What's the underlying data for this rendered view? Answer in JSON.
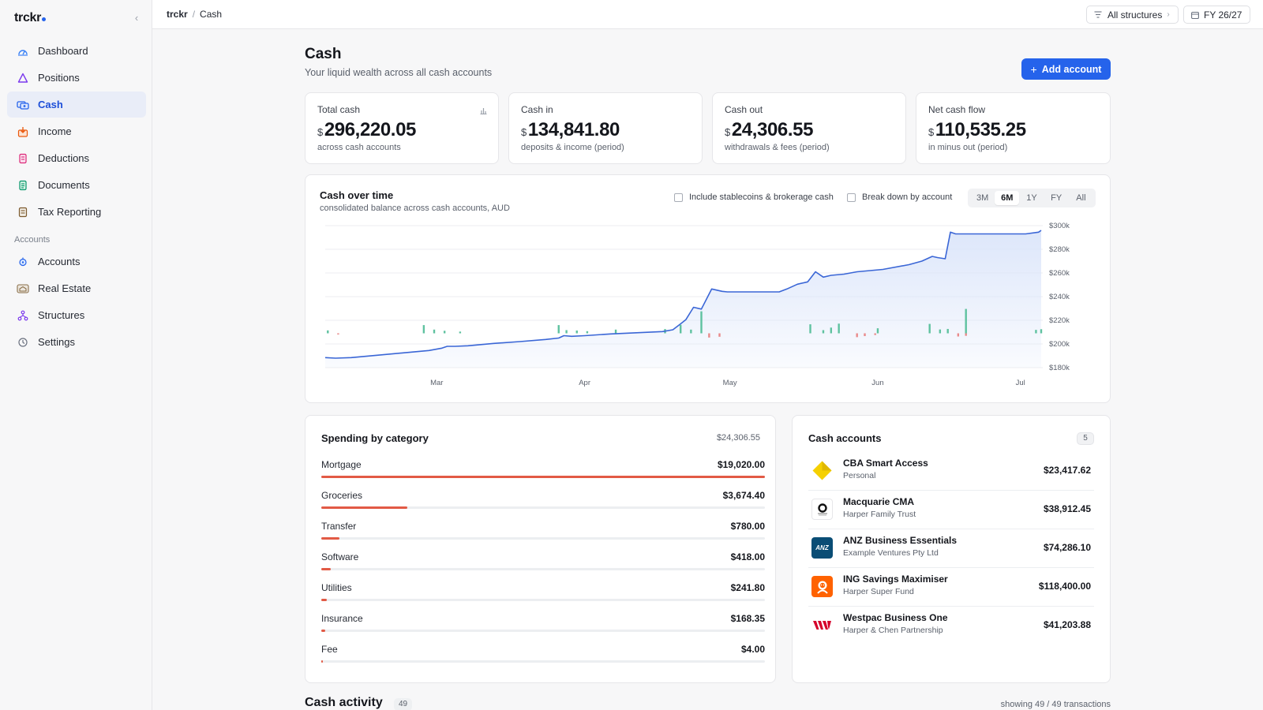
{
  "app": {
    "name": "trckr"
  },
  "sidebar": {
    "items": [
      {
        "label": "Dashboard",
        "icon": "dashboard-icon"
      },
      {
        "label": "Positions",
        "icon": "positions-icon"
      },
      {
        "label": "Cash",
        "icon": "cash-icon",
        "active": true
      },
      {
        "label": "Income",
        "icon": "income-icon"
      },
      {
        "label": "Deductions",
        "icon": "deductions-icon"
      },
      {
        "label": "Documents",
        "icon": "documents-icon"
      },
      {
        "label": "Tax Reporting",
        "icon": "tax-reporting-icon"
      }
    ],
    "section_label": "Accounts",
    "section_items": [
      {
        "label": "Accounts",
        "icon": "accounts-icon"
      },
      {
        "label": "Real Estate",
        "icon": "real-estate-icon"
      },
      {
        "label": "Structures",
        "icon": "structures-icon"
      },
      {
        "label": "Settings",
        "icon": "settings-icon"
      }
    ]
  },
  "topbar": {
    "breadcrumb_root": "trckr",
    "breadcrumb_sep": "/",
    "breadcrumb_current": "Cash",
    "structures_filter": "All structures",
    "fiscal_year": "FY 26/27"
  },
  "page": {
    "title": "Cash",
    "subtitle": "Your liquid wealth across all cash accounts",
    "add_button": "Add account"
  },
  "kpis": [
    {
      "label": "Total cash",
      "currency": "$",
      "value": "296,220.05",
      "sub": "across cash accounts"
    },
    {
      "label": "Cash in",
      "currency": "$",
      "value": "134,841.80",
      "sub": "deposits & income (period)"
    },
    {
      "label": "Cash out",
      "currency": "$",
      "value": "24,306.55",
      "sub": "withdrawals & fees (period)"
    },
    {
      "label": "Net cash flow",
      "currency": "$",
      "value": "110,535.25",
      "sub": "in minus out (period)"
    }
  ],
  "cash_chart": {
    "title": "Cash over time",
    "subtitle": "consolidated balance across cash accounts, AUD",
    "option_stablecoins": "Include stablecoins & brokerage cash",
    "option_breakdown": "Break down by account",
    "ranges": [
      "3M",
      "6M",
      "1Y",
      "FY",
      "All"
    ],
    "active_range": "6M",
    "colors": {
      "line": "#3a66d6",
      "area": "#dbe5fa",
      "inflow": "#5fc2a0",
      "outflow": "#e98a8a"
    }
  },
  "chart_data": {
    "type": "line",
    "title": "Cash over time",
    "x_ticks": [
      "Mar",
      "Apr",
      "May",
      "Jun",
      "Jul"
    ],
    "y_ticks": [
      "$180k",
      "$200k",
      "$220k",
      "$240k",
      "$260k",
      "$280k",
      "$300k"
    ],
    "ylim": [
      180000,
      300000
    ],
    "grid": true,
    "series": [
      {
        "values": [
          [
            0,
            188500
          ],
          [
            4,
            188000
          ],
          [
            10,
            188500
          ],
          [
            20,
            190500
          ],
          [
            30,
            192500
          ],
          [
            40,
            194500
          ],
          [
            45,
            196500
          ],
          [
            47,
            198000
          ],
          [
            50,
            198000
          ],
          [
            55,
            198500
          ],
          [
            65,
            200500
          ],
          [
            75,
            202000
          ],
          [
            85,
            203800
          ],
          [
            90,
            205000
          ],
          [
            92,
            207000
          ],
          [
            95,
            206500
          ],
          [
            100,
            207000
          ],
          [
            110,
            208500
          ],
          [
            120,
            209500
          ],
          [
            130,
            210500
          ],
          [
            134,
            212000
          ],
          [
            137,
            217000
          ],
          [
            139,
            220500
          ],
          [
            142,
            231000
          ],
          [
            145,
            229500
          ],
          [
            149,
            246500
          ],
          [
            153,
            244500
          ],
          [
            155,
            244000
          ],
          [
            160,
            244000
          ],
          [
            170,
            244000
          ],
          [
            175,
            244000
          ],
          [
            178,
            246500
          ],
          [
            182,
            250500
          ],
          [
            186,
            252500
          ],
          [
            189,
            261000
          ],
          [
            192,
            256500
          ],
          [
            195,
            258000
          ],
          [
            200,
            259000
          ],
          [
            205,
            261000
          ],
          [
            215,
            263000
          ],
          [
            225,
            267000
          ],
          [
            230,
            270000
          ],
          [
            234,
            274000
          ],
          [
            236,
            273000
          ],
          [
            239,
            272000
          ],
          [
            241,
            294500
          ],
          [
            243,
            293000
          ],
          [
            250,
            293000
          ],
          [
            260,
            293000
          ],
          [
            270,
            293000
          ],
          [
            275,
            294500
          ],
          [
            276,
            296000
          ]
        ]
      },
      {
        "name": "Cash in",
        "values": [
          [
            1,
            2200
          ],
          [
            38,
            6200
          ],
          [
            42,
            2800
          ],
          [
            46,
            1900
          ],
          [
            52,
            1300
          ],
          [
            90,
            6200
          ],
          [
            93,
            2400
          ],
          [
            97,
            2100
          ],
          [
            101,
            1600
          ],
          [
            112,
            2800
          ],
          [
            131,
            3200
          ],
          [
            137,
            6400
          ],
          [
            141,
            2800
          ],
          [
            145,
            16600
          ],
          [
            187,
            6800
          ],
          [
            192,
            2400
          ],
          [
            195,
            4300
          ],
          [
            198,
            7300
          ],
          [
            213,
            3800
          ],
          [
            233,
            7100
          ],
          [
            237,
            2900
          ],
          [
            240,
            3300
          ],
          [
            247,
            18400
          ],
          [
            274,
            2600
          ],
          [
            276,
            3100
          ]
        ]
      },
      {
        "name": "Cash out",
        "values": [
          [
            5,
            -400
          ],
          [
            148,
            -3200
          ],
          [
            152,
            -2600
          ],
          [
            205,
            -2900
          ],
          [
            208,
            -2100
          ],
          [
            212,
            -1300
          ],
          [
            244,
            -2400
          ],
          [
            247,
            -1900
          ]
        ]
      }
    ]
  },
  "spending": {
    "title": "Spending by category",
    "total": "$24,306.55",
    "categories": [
      {
        "name": "Mortgage",
        "amount": "$19,020.00",
        "value": 19020.0
      },
      {
        "name": "Groceries",
        "amount": "$3,674.40",
        "value": 3674.4
      },
      {
        "name": "Transfer",
        "amount": "$780.00",
        "value": 780.0
      },
      {
        "name": "Software",
        "amount": "$418.00",
        "value": 418.0
      },
      {
        "name": "Utilities",
        "amount": "$241.80",
        "value": 241.8
      },
      {
        "name": "Insurance",
        "amount": "$168.35",
        "value": 168.35
      },
      {
        "name": "Fee",
        "amount": "$4.00",
        "value": 4.0
      }
    ]
  },
  "accounts": {
    "title": "Cash accounts",
    "count": "5",
    "items": [
      {
        "name": "CBA Smart Access",
        "owner": "Personal",
        "balance": "$23,417.62",
        "logo": "cba-logo-icon",
        "logo_color": "#f5d000"
      },
      {
        "name": "Macquarie CMA",
        "owner": "Harper Family Trust",
        "balance": "$38,912.45",
        "logo": "macquarie-logo-icon",
        "logo_color": "#111111"
      },
      {
        "name": "ANZ Business Essentials",
        "owner": "Example Ventures Pty Ltd",
        "balance": "$74,286.10",
        "logo": "anz-logo-icon",
        "logo_color": "#0a4d75",
        "logo_text": "ANZ"
      },
      {
        "name": "ING Savings Maximiser",
        "owner": "Harper Super Fund",
        "balance": "$118,400.00",
        "logo": "ing-logo-icon",
        "logo_color": "#ff6200"
      },
      {
        "name": "Westpac Business One",
        "owner": "Harper & Chen Partnership",
        "balance": "$41,203.88",
        "logo": "westpac-logo-icon",
        "logo_color": "#d5002b"
      }
    ]
  },
  "activity": {
    "title": "Cash activity",
    "count": "49",
    "showing": "showing 49 / 49 transactions"
  }
}
